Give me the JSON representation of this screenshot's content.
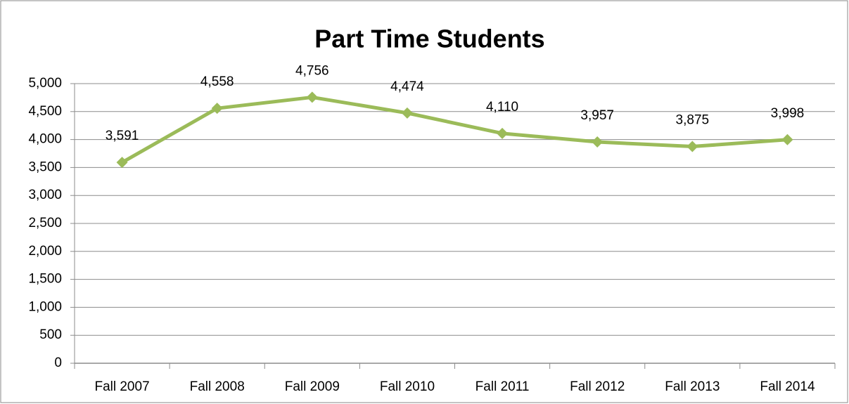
{
  "chart_data": {
    "type": "line",
    "title": "Part Time Students",
    "categories": [
      "Fall 2007",
      "Fall 2008",
      "Fall 2009",
      "Fall 2010",
      "Fall 2011",
      "Fall 2012",
      "Fall 2013",
      "Fall 2014"
    ],
    "series": [
      {
        "name": "Part Time Students",
        "color": "#9bbb59",
        "values": [
          3591,
          4558,
          4756,
          4474,
          4110,
          3957,
          3875,
          3998
        ],
        "value_labels": [
          "3,591",
          "4,558",
          "4,756",
          "4,474",
          "4,110",
          "3,957",
          "3,875",
          "3,998"
        ]
      }
    ],
    "ylim": [
      0,
      5000
    ],
    "yticks": [
      0,
      500,
      {
        "value": 1000,
        "label": "1,000"
      },
      {
        "value": 1500,
        "label": "1,500"
      },
      {
        "value": 2000,
        "label": "2,000"
      },
      {
        "value": 2500,
        "label": "2,500"
      },
      {
        "value": 3000,
        "label": "3,000"
      },
      {
        "value": 3500,
        "label": "3,500"
      },
      {
        "value": 4000,
        "label": "4,000"
      },
      {
        "value": 4500,
        "label": "4,500"
      },
      {
        "value": 5000,
        "label": "5,000"
      }
    ],
    "grid": true
  }
}
